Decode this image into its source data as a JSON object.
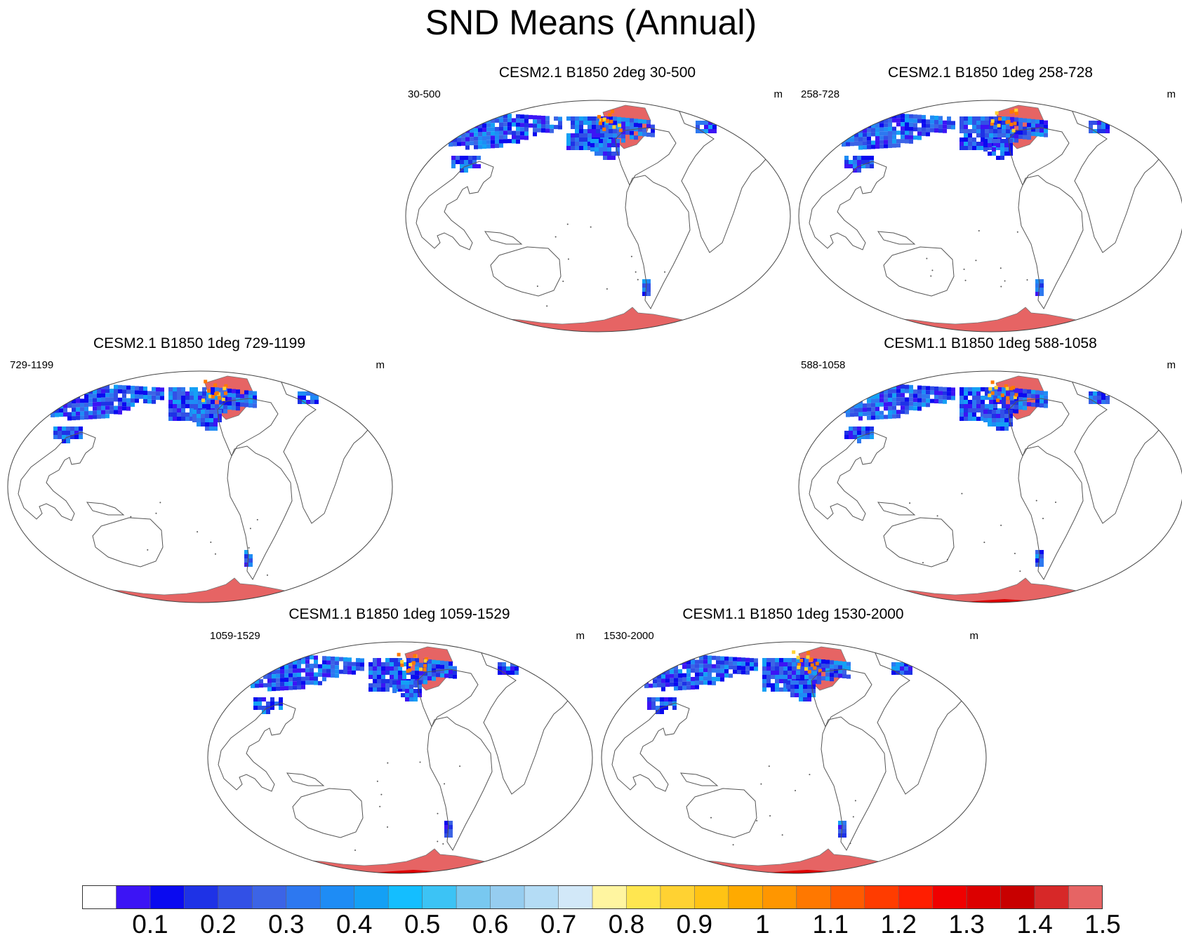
{
  "title": "SND Means (Annual)",
  "units": "m",
  "panels": [
    {
      "title": "CESM2.1 B1850 2deg 30-500",
      "left_string": "30-500",
      "right_string": "m"
    },
    {
      "title": "CESM2.1 B1850 1deg 258-728",
      "left_string": "258-728",
      "right_string": "m"
    },
    {
      "title": "CESM2.1 B1850 1deg 729-1199",
      "left_string": "729-1199",
      "right_string": "m"
    },
    {
      "title": "CESM1.1 B1850 1deg 588-1058",
      "left_string": "588-1058",
      "right_string": "m"
    },
    {
      "title": "CESM1.1 B1850 1deg 1059-1529",
      "left_string": "1059-1529",
      "right_string": "m"
    },
    {
      "title": "CESM1.1 B1850 1deg 1530-2000",
      "left_string": "1530-2000",
      "right_string": "m"
    }
  ],
  "colorbar": {
    "labels": [
      "0.1",
      "0.2",
      "0.3",
      "0.4",
      "0.5",
      "0.6",
      "0.7",
      "0.8",
      "0.9",
      "1",
      "1.1",
      "1.2",
      "1.3",
      "1.4",
      "1.5"
    ],
    "colors": [
      "#ffffff",
      "#3c14f5",
      "#0a0af0",
      "#1e32e6",
      "#3250e6",
      "#3c64e6",
      "#2d78f0",
      "#1e8cf5",
      "#14a0f5",
      "#14beff",
      "#3cc3f5",
      "#78c8f0",
      "#96cdf0",
      "#b4dcf5",
      "#d2e8f8",
      "#fff5a0",
      "#ffe650",
      "#ffd232",
      "#ffc314",
      "#ffaa00",
      "#ff9600",
      "#ff7800",
      "#ff5a00",
      "#ff3c00",
      "#ff1e00",
      "#f00000",
      "#dc0000",
      "#c80000",
      "#d72828",
      "#e66464"
    ]
  },
  "chart_data": {
    "type": "heatmap",
    "title": "SND Means (Annual)",
    "variable": "SND",
    "units": "m",
    "levels": [
      0.1,
      0.2,
      0.3,
      0.4,
      0.5,
      0.6,
      0.7,
      0.8,
      0.9,
      1,
      1.1,
      1.2,
      1.3,
      1.4,
      1.5
    ],
    "panels": [
      "CESM2.1 B1850 2deg 30-500",
      "CESM2.1 B1850 1deg 258-728",
      "CESM2.1 B1850 1deg 729-1199",
      "CESM1.1 B1850 1deg 588-1058",
      "CESM1.1 B1850 1deg 1059-1529",
      "CESM1.1 B1850 1deg 1530-2000"
    ]
  }
}
